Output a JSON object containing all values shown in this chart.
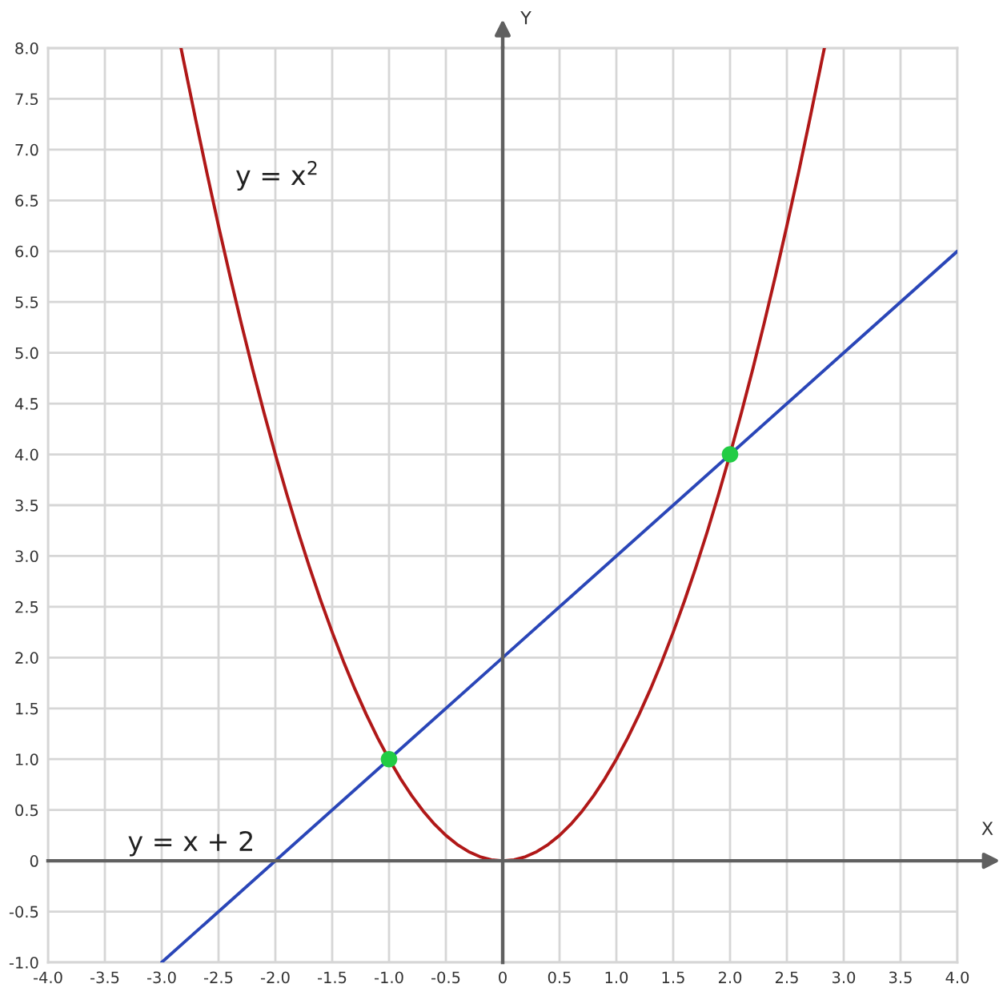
{
  "chart_data": {
    "type": "line",
    "xlabel": "X",
    "ylabel": "Y",
    "xlim": [
      -4,
      4
    ],
    "ylim": [
      -1,
      8
    ],
    "xticks": [
      {
        "value": -4,
        "label": "-4.0"
      },
      -3.5,
      {
        "value": -3,
        "label": "-3.0"
      },
      -2.5,
      {
        "value": -2,
        "label": "-2.0"
      },
      -1.5,
      {
        "value": -1,
        "label": "-1.0"
      },
      -0.5,
      0,
      0.5,
      {
        "value": 1,
        "label": "1.0"
      },
      1.5,
      {
        "value": 2,
        "label": "2.0"
      },
      2.5,
      {
        "value": 3,
        "label": "3.0"
      },
      3.5,
      {
        "value": 4,
        "label": "4.0"
      }
    ],
    "yticks": [
      {
        "value": -1,
        "label": "-1.0"
      },
      -0.5,
      0,
      0.5,
      {
        "value": 1,
        "label": "1.0"
      },
      1.5,
      {
        "value": 2,
        "label": "2.0"
      },
      2.5,
      {
        "value": 3,
        "label": "3.0"
      },
      3.5,
      {
        "value": 4,
        "label": "4.0"
      },
      4.5,
      {
        "value": 5,
        "label": "5.0"
      },
      5.5,
      {
        "value": 6,
        "label": "6.0"
      },
      6.5,
      {
        "value": 7,
        "label": "7.0"
      },
      7.5,
      {
        "value": 8,
        "label": "8.0"
      }
    ],
    "grid": true,
    "legend": false,
    "series": [
      {
        "name": "y = x$^{2}$",
        "color": "#b01818",
        "x": [
          -2.83,
          -2.7,
          -2.6,
          -2.5,
          -2.4,
          -2.3,
          -2.2,
          -2.1,
          -2.0,
          -1.9,
          -1.8,
          -1.7,
          -1.6,
          -1.5,
          -1.4,
          -1.3,
          -1.2,
          -1.1,
          -1.0,
          -0.9,
          -0.8,
          -0.7,
          -0.6,
          -0.5,
          -0.4,
          -0.3,
          -0.2,
          -0.1,
          0,
          0.1,
          0.2,
          0.3,
          0.4,
          0.5,
          0.6,
          0.7,
          0.8,
          0.9,
          1.0,
          1.1,
          1.2,
          1.3,
          1.4,
          1.5,
          1.6,
          1.7,
          1.8,
          1.9,
          2.0,
          2.1,
          2.2,
          2.3,
          2.4,
          2.5,
          2.6,
          2.7,
          2.83
        ],
        "values": [
          8.0,
          7.29,
          6.76,
          6.25,
          5.76,
          5.29,
          4.84,
          4.41,
          4.0,
          3.61,
          3.24,
          2.89,
          2.56,
          2.25,
          1.96,
          1.69,
          1.44,
          1.21,
          1.0,
          0.81,
          0.64,
          0.49,
          0.36,
          0.25,
          0.16,
          0.09,
          0.04,
          0.01,
          0,
          0.01,
          0.04,
          0.09,
          0.16,
          0.25,
          0.36,
          0.49,
          0.64,
          0.81,
          1.0,
          1.21,
          1.44,
          1.69,
          1.96,
          2.25,
          2.56,
          2.89,
          3.24,
          3.61,
          4.0,
          4.41,
          4.84,
          5.29,
          5.76,
          6.25,
          6.76,
          7.29,
          8.0
        ]
      },
      {
        "name": "y = x + 2",
        "color": "#2a46b8",
        "x": [
          -3,
          0,
          4
        ],
        "values": [
          -1,
          2,
          6
        ]
      },
      {
        "type": "scatter",
        "color": "#22cc44",
        "marker": "circle",
        "x": [
          -1,
          2
        ],
        "values": [
          1,
          4
        ]
      }
    ]
  }
}
